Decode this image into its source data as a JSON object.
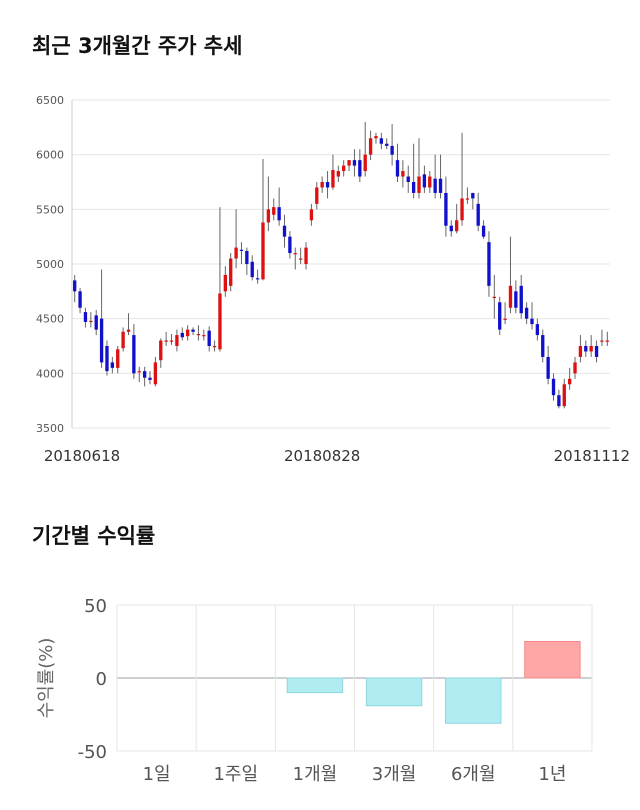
{
  "sections": {
    "price_title": "최근 3개월간 주가 추세",
    "returns_title": "기간별 수익률"
  },
  "colors": {
    "up": "#dd1111",
    "down": "#1111cc",
    "wick": "#666666",
    "grid": "#e6e6e6",
    "positive_bar": "#ffa6a6",
    "negative_bar": "#b0ecf2"
  },
  "chart_data": [
    {
      "type": "candlestick",
      "title": "최근 3개월간 주가 추세",
      "ylim": [
        3500,
        6500
      ],
      "yticks": [
        3500,
        4000,
        4500,
        5000,
        5500,
        6000,
        6500
      ],
      "x_tick_labels": [
        {
          "index": 0,
          "label": "20180618"
        },
        {
          "index": 46,
          "label": "20180828"
        },
        {
          "index": 99,
          "label": "20181112"
        }
      ],
      "candles": [
        [
          4850,
          4750,
          4900,
          4650
        ],
        [
          4750,
          4600,
          4780,
          4550
        ],
        [
          4560,
          4470,
          4600,
          4420
        ],
        [
          4480,
          4480,
          4560,
          4420
        ],
        [
          4530,
          4400,
          4580,
          4350
        ],
        [
          4500,
          4100,
          4950,
          4050
        ],
        [
          4250,
          4020,
          4300,
          3980
        ],
        [
          4100,
          4050,
          4150,
          4000
        ],
        [
          4050,
          4220,
          4250,
          4000
        ],
        [
          4230,
          4380,
          4420,
          4200
        ],
        [
          4380,
          4400,
          4550,
          4350
        ],
        [
          4350,
          4000,
          4450,
          3950
        ],
        [
          4020,
          4020,
          4060,
          3920
        ],
        [
          4020,
          3960,
          4060,
          3880
        ],
        [
          3960,
          3940,
          4020,
          3900
        ],
        [
          3900,
          4100,
          4150,
          3880
        ],
        [
          4120,
          4300,
          4320,
          4050
        ],
        [
          4300,
          4300,
          4380,
          4250
        ],
        [
          4300,
          4300,
          4360,
          4260
        ],
        [
          4250,
          4350,
          4400,
          4200
        ],
        [
          4370,
          4330,
          4420,
          4300
        ],
        [
          4340,
          4400,
          4440,
          4300
        ],
        [
          4400,
          4380,
          4420,
          4350
        ],
        [
          4360,
          4360,
          4440,
          4300
        ],
        [
          4350,
          4350,
          4400,
          4300
        ],
        [
          4390,
          4250,
          4430,
          4200
        ],
        [
          4250,
          4250,
          4300,
          4200
        ],
        [
          4220,
          4730,
          5520,
          4200
        ],
        [
          4750,
          4900,
          4980,
          4700
        ],
        [
          4800,
          5050,
          5100,
          4750
        ],
        [
          5050,
          5150,
          5500,
          4960
        ],
        [
          5130,
          5120,
          5200,
          5000
        ],
        [
          5120,
          5000,
          5150,
          4900
        ],
        [
          5020,
          4880,
          5080,
          4850
        ],
        [
          4870,
          4860,
          4950,
          4820
        ],
        [
          4860,
          5380,
          5960,
          4850
        ],
        [
          5380,
          5500,
          5800,
          5300
        ],
        [
          5450,
          5520,
          5600,
          5400
        ],
        [
          5520,
          5400,
          5700,
          5350
        ],
        [
          5350,
          5250,
          5450,
          5150
        ],
        [
          5250,
          5100,
          5300,
          5050
        ],
        [
          5100,
          5100,
          5150,
          4950
        ],
        [
          5050,
          5050,
          5150,
          5000
        ],
        [
          5000,
          5150,
          5200,
          4950
        ],
        [
          5400,
          5500,
          5550,
          5350
        ],
        [
          5550,
          5700,
          5750,
          5500
        ],
        [
          5700,
          5750,
          5800,
          5650
        ],
        [
          5750,
          5700,
          5850,
          5600
        ],
        [
          5700,
          5860,
          6000,
          5680
        ],
        [
          5800,
          5850,
          5900,
          5750
        ],
        [
          5850,
          5900,
          5950,
          5800
        ],
        [
          5900,
          5950,
          5950,
          5850
        ],
        [
          5950,
          5900,
          6050,
          5800
        ],
        [
          5950,
          5800,
          6050,
          5750
        ],
        [
          5850,
          6000,
          6300,
          5800
        ],
        [
          6000,
          6150,
          6220,
          5950
        ],
        [
          6150,
          6170,
          6200,
          6100
        ],
        [
          6150,
          6100,
          6200,
          6050
        ],
        [
          6100,
          6080,
          6150,
          6050
        ],
        [
          6080,
          6000,
          6280,
          5900
        ],
        [
          5950,
          5800,
          6100,
          5750
        ],
        [
          5800,
          5850,
          5950,
          5700
        ],
        [
          5800,
          5750,
          5900,
          5650
        ],
        [
          5750,
          5650,
          6100,
          5600
        ],
        [
          5650,
          5800,
          6150,
          5600
        ],
        [
          5820,
          5700,
          5900,
          5650
        ],
        [
          5700,
          5800,
          5850,
          5650
        ],
        [
          5780,
          5650,
          6000,
          5600
        ],
        [
          5780,
          5650,
          6000,
          5600
        ],
        [
          5650,
          5350,
          5800,
          5250
        ],
        [
          5350,
          5300,
          5400,
          5250
        ],
        [
          5300,
          5400,
          5550,
          5280
        ],
        [
          5400,
          5600,
          6200,
          5350
        ],
        [
          5600,
          5600,
          5700,
          5550
        ],
        [
          5650,
          5600,
          5650,
          5500
        ],
        [
          5550,
          5350,
          5650,
          5300
        ],
        [
          5350,
          5250,
          5400,
          5230
        ],
        [
          5200,
          4800,
          5300,
          4700
        ],
        [
          4700,
          4700,
          4900,
          4500
        ],
        [
          4650,
          4400,
          4700,
          4350
        ],
        [
          4500,
          4500,
          4650,
          4450
        ],
        [
          4600,
          4800,
          5250,
          4550
        ],
        [
          4750,
          4600,
          4850,
          4550
        ],
        [
          4800,
          4550,
          4900,
          4500
        ],
        [
          4600,
          4500,
          4650,
          4450
        ],
        [
          4500,
          4450,
          4650,
          4400
        ],
        [
          4450,
          4350,
          4500,
          4300
        ],
        [
          4350,
          4150,
          4400,
          4100
        ],
        [
          4150,
          3950,
          4250,
          3900
        ],
        [
          3950,
          3800,
          4000,
          3750
        ],
        [
          3800,
          3700,
          3850,
          3680
        ],
        [
          3700,
          3900,
          3950,
          3680
        ],
        [
          3900,
          3950,
          4050,
          3850
        ],
        [
          4000,
          4100,
          4150,
          3950
        ],
        [
          4150,
          4250,
          4350,
          4100
        ],
        [
          4250,
          4200,
          4300,
          4150
        ],
        [
          4200,
          4250,
          4350,
          4150
        ],
        [
          4250,
          4150,
          4300,
          4100
        ],
        [
          4300,
          4300,
          4400,
          4250
        ],
        [
          4300,
          4300,
          4380,
          4250
        ]
      ]
    },
    {
      "type": "bar",
      "title": "기간별 수익률",
      "ylabel": "수익률(%)",
      "ylim": [
        -50,
        50
      ],
      "yticks": [
        -50,
        0,
        50
      ],
      "categories": [
        "1일",
        "1주일",
        "1개월",
        "3개월",
        "6개월",
        "1년"
      ],
      "values": [
        0,
        0,
        -10,
        -19,
        -31,
        25
      ]
    }
  ]
}
